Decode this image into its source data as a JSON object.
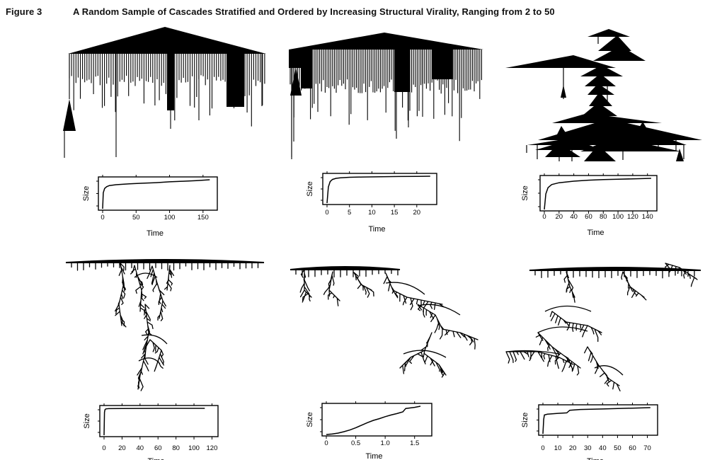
{
  "figure": {
    "label": "Figure 3",
    "title": "A Random Sample of Cascades Stratified and Ordered by Increasing Structural Virality, Ranging from 2 to 50"
  },
  "panels": [
    {
      "id": "p1",
      "x_ticks": [
        "0",
        "50",
        "100",
        "150"
      ],
      "x_label": "Time",
      "y_label": "Size"
    },
    {
      "id": "p2",
      "x_ticks": [
        "0",
        "5",
        "10",
        "15",
        "20"
      ],
      "x_label": "Time",
      "y_label": "Size"
    },
    {
      "id": "p3",
      "x_ticks": [
        "0",
        "20",
        "40",
        "60",
        "80",
        "100",
        "120",
        "140"
      ],
      "x_label": "Time",
      "y_label": "Size"
    },
    {
      "id": "p4",
      "x_ticks": [
        "0",
        "20",
        "40",
        "60",
        "80",
        "100",
        "120"
      ],
      "x_label": "Time",
      "y_label": "Size"
    },
    {
      "id": "p5",
      "x_ticks": [
        "0",
        "0.5",
        "1.0",
        "1.5"
      ],
      "x_label": "Time",
      "y_label": "Size"
    },
    {
      "id": "p6",
      "x_ticks": [
        "0",
        "10",
        "20",
        "30",
        "40",
        "50",
        "60",
        "70"
      ],
      "x_label": "Time",
      "y_label": "Size"
    }
  ],
  "chart_data": [
    {
      "type": "line",
      "xlabel": "Time",
      "ylabel": "Size",
      "x_tick_labels": [
        "0",
        "50",
        "100",
        "150"
      ],
      "xlim": [
        0,
        165
      ],
      "x": [
        0,
        1,
        3,
        6,
        10,
        20,
        40,
        60,
        80,
        100,
        120,
        140,
        160
      ],
      "values": [
        0.0,
        0.55,
        0.7,
        0.76,
        0.8,
        0.83,
        0.86,
        0.88,
        0.9,
        0.93,
        0.95,
        0.97,
        1.0
      ]
    },
    {
      "type": "line",
      "xlabel": "Time",
      "ylabel": "Size",
      "x_tick_labels": [
        "0",
        "5",
        "10",
        "15",
        "20"
      ],
      "xlim": [
        0,
        23.5
      ],
      "x": [
        0,
        0.3,
        0.7,
        1.2,
        2,
        3,
        5,
        8,
        12,
        16,
        20,
        23
      ],
      "values": [
        0.0,
        0.6,
        0.8,
        0.88,
        0.92,
        0.94,
        0.96,
        0.97,
        0.98,
        0.99,
        0.995,
        1.0
      ]
    },
    {
      "type": "line",
      "xlabel": "Time",
      "ylabel": "Size",
      "x_tick_labels": [
        "0",
        "20",
        "40",
        "60",
        "80",
        "100",
        "120",
        "140"
      ],
      "xlim": [
        0,
        147
      ],
      "x": [
        0,
        2,
        5,
        10,
        20,
        40,
        60,
        80,
        100,
        120,
        145
      ],
      "values": [
        0.0,
        0.5,
        0.7,
        0.8,
        0.86,
        0.91,
        0.94,
        0.96,
        0.97,
        0.985,
        1.0
      ]
    },
    {
      "type": "line",
      "xlabel": "Time",
      "ylabel": "Size",
      "x_tick_labels": [
        "0",
        "20",
        "40",
        "60",
        "80",
        "100",
        "120"
      ],
      "xlim": [
        0,
        122
      ],
      "x": [
        0,
        0.5,
        1,
        2,
        5,
        20,
        60,
        112
      ],
      "values": [
        0.0,
        0.85,
        0.95,
        0.98,
        0.99,
        0.995,
        1.0,
        1.0
      ]
    },
    {
      "type": "line",
      "xlabel": "Time",
      "ylabel": "Size",
      "x_tick_labels": [
        "0",
        "0.5",
        "1.0",
        "1.5"
      ],
      "xlim": [
        0,
        1.72
      ],
      "x": [
        0,
        0.1,
        0.2,
        0.3,
        0.4,
        0.5,
        0.6,
        0.7,
        0.8,
        0.9,
        1.0,
        1.1,
        1.2,
        1.3,
        1.35,
        1.5,
        1.6
      ],
      "values": [
        0.0,
        0.02,
        0.05,
        0.1,
        0.16,
        0.24,
        0.33,
        0.42,
        0.5,
        0.56,
        0.63,
        0.69,
        0.74,
        0.8,
        0.92,
        0.96,
        1.0
      ]
    },
    {
      "type": "line",
      "xlabel": "Time",
      "ylabel": "Size",
      "x_tick_labels": [
        "0",
        "10",
        "20",
        "30",
        "40",
        "50",
        "60",
        "70"
      ],
      "xlim": [
        0,
        74
      ],
      "x": [
        0,
        0.5,
        1,
        3,
        10,
        16,
        18,
        25,
        40,
        60,
        72
      ],
      "values": [
        0.0,
        0.55,
        0.72,
        0.75,
        0.78,
        0.8,
        0.9,
        0.93,
        0.95,
        0.98,
        1.0
      ]
    }
  ],
  "cascade_trees": [
    {
      "id": "tree1",
      "panel": "p1",
      "shape": "broadcast"
    },
    {
      "id": "tree2",
      "panel": "p2",
      "shape": "broadcast"
    },
    {
      "id": "tree3",
      "panel": "p3",
      "shape": "stacked-hubs"
    },
    {
      "id": "tree4",
      "panel": "p4",
      "shape": "deep-branching"
    },
    {
      "id": "tree5",
      "panel": "p5",
      "shape": "deep-branching"
    },
    {
      "id": "tree6",
      "panel": "p6",
      "shape": "deep-branching"
    }
  ]
}
